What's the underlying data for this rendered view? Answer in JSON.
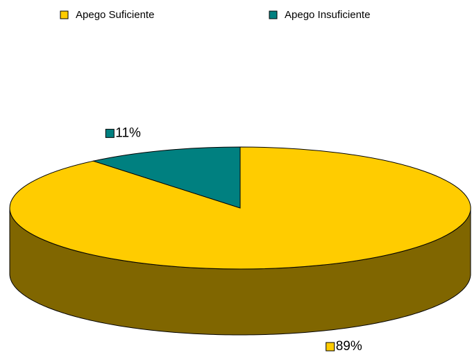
{
  "chart_data": {
    "type": "pie3d",
    "categories": [
      "Apego Suficiente",
      "Apego Insuficiente"
    ],
    "values": [
      89,
      11
    ],
    "value_labels": [
      "89%",
      "11%"
    ],
    "colors": [
      "#FFCC00",
      "#008080"
    ],
    "start_angle": 0,
    "direction": "clockwise",
    "legend": "top"
  }
}
